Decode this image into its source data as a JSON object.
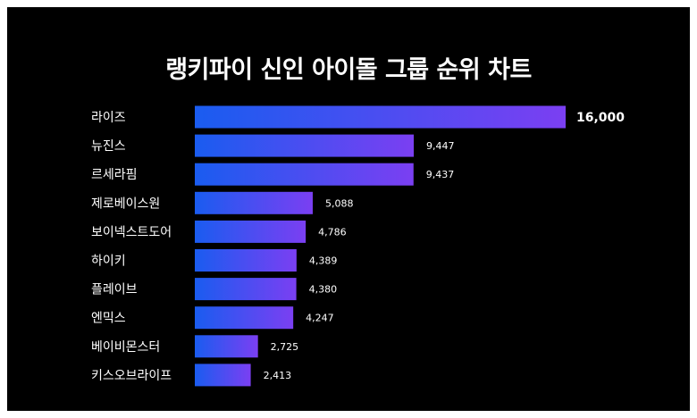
{
  "chart_data": {
    "type": "bar",
    "orientation": "horizontal",
    "title": "랭키파이 신인 아이돌 그룹 순위 차트",
    "categories": [
      "라이즈",
      "뉴진스",
      "르세라핌",
      "제로베이스원",
      "보이넥스트도어",
      "하이키",
      "플레이브",
      "엔믹스",
      "베이비몬스터",
      "키스오브라이프"
    ],
    "values": [
      16000,
      9447,
      9437,
      5088,
      4786,
      4389,
      4380,
      4247,
      2725,
      2413
    ],
    "value_labels": [
      "16,000",
      "9,447",
      "9,437",
      "5,088",
      "4,786",
      "4,389",
      "4,380",
      "4,247",
      "2,725",
      "2,413"
    ],
    "xlim": [
      0,
      16000
    ],
    "grid": false,
    "legend": "none",
    "colors": {
      "background": "#000000",
      "bar_start": "#1a5cf0",
      "bar_end": "#7b3ff2",
      "text": "#ffffff"
    }
  }
}
